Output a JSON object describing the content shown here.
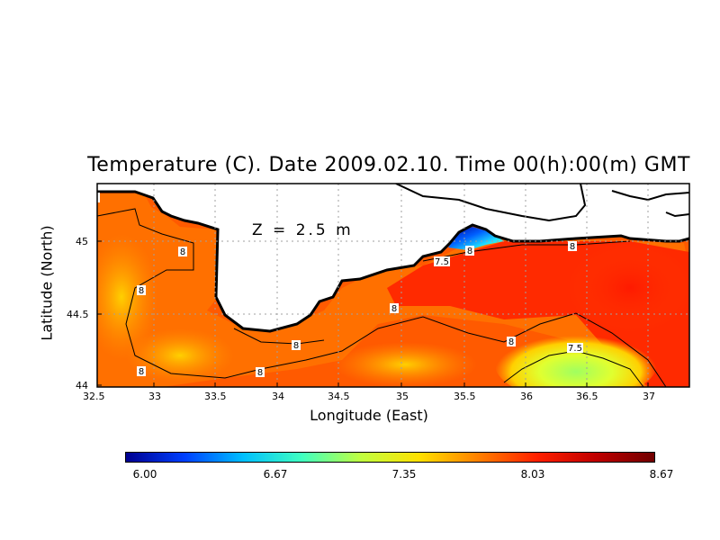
{
  "title": "Temperature (C). Date 2009.02.10. Time 00(h):00(m) GMT",
  "depth_label": "Z = 2.5 m",
  "x_axis": {
    "label": "Longitude (East)",
    "ticks": [
      "32.5",
      "33",
      "33.5",
      "34",
      "34.5",
      "35",
      "35.5",
      "36",
      "36.5",
      "37"
    ]
  },
  "y_axis": {
    "label": "Latitude (North)",
    "ticks": [
      "45",
      "44.5",
      "44"
    ]
  },
  "colorbar": {
    "labels": [
      "6.00",
      "6.67",
      "7.35",
      "8.03",
      "8.67"
    ],
    "colors": [
      "#000090",
      "#0040ff",
      "#00c0ff",
      "#40ffc0",
      "#c0ff40",
      "#ffe000",
      "#ff8000",
      "#ff2000",
      "#c00000",
      "#700000"
    ]
  },
  "contour_labels": [
    "8",
    "8",
    "8",
    "8",
    "8",
    "8",
    "8",
    "8",
    "7.5",
    "8",
    "8",
    "7.5"
  ],
  "colors": {
    "land": "#ffffff",
    "coast": "#000000",
    "grid": "#a0a0a0"
  }
}
